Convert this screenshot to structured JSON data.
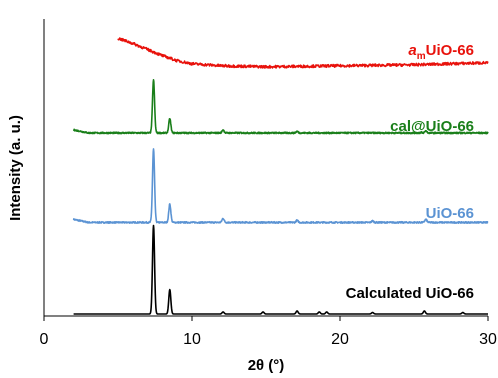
{
  "chart_data": {
    "type": "line",
    "title": "",
    "xlabel": "2θ (°)",
    "ylabel": "Intensity (a. u.)",
    "xlim": [
      0,
      30
    ],
    "xticks": [
      "0",
      "10",
      "20",
      "30"
    ],
    "y_ticks_shown": false,
    "grid": false,
    "legend": "inline labels at right",
    "series": [
      {
        "name": "Calculated UiO-66",
        "color": "#000000",
        "x_range": [
          2,
          30
        ],
        "baseline": 0,
        "peaks": [
          {
            "x": 7.4,
            "y": 87
          },
          {
            "x": 8.5,
            "y": 24
          },
          {
            "x": 12.1,
            "y": 2
          },
          {
            "x": 14.8,
            "y": 2
          },
          {
            "x": 17.1,
            "y": 3
          },
          {
            "x": 18.6,
            "y": 2
          },
          {
            "x": 19.1,
            "y": 2
          },
          {
            "x": 22.2,
            "y": 1.5
          },
          {
            "x": 25.7,
            "y": 3
          },
          {
            "x": 28.3,
            "y": 1.5
          }
        ]
      },
      {
        "name": "UiO-66",
        "color": "#5b93d3",
        "x_range": [
          2,
          30
        ],
        "baseline": 90,
        "peaks": [
          {
            "x": 7.4,
            "y": 72
          },
          {
            "x": 8.5,
            "y": 18
          },
          {
            "x": 12.1,
            "y": 4
          },
          {
            "x": 17.1,
            "y": 2
          },
          {
            "x": 22.2,
            "y": 1.5
          },
          {
            "x": 25.8,
            "y": 3
          }
        ]
      },
      {
        "name": "cal@UiO-66",
        "color": "#1a7f1a",
        "x_range": [
          2,
          30
        ],
        "baseline": 178,
        "peaks": [
          {
            "x": 7.4,
            "y": 52
          },
          {
            "x": 8.5,
            "y": 14
          },
          {
            "x": 12.1,
            "y": 3
          },
          {
            "x": 17.1,
            "y": 1.5
          },
          {
            "x": 25.8,
            "y": 2
          }
        ]
      },
      {
        "name_prefix": "a",
        "name_subscript": "m",
        "name_suffix": "UiO-66",
        "color": "#e8120c",
        "x_range": [
          5,
          30
        ],
        "points": [
          [
            5,
            271
          ],
          [
            6,
            266
          ],
          [
            7,
            260
          ],
          [
            8,
            254
          ],
          [
            9,
            249
          ],
          [
            10,
            246
          ],
          [
            12,
            244
          ],
          [
            15,
            243
          ],
          [
            20,
            244
          ],
          [
            25,
            245
          ],
          [
            30,
            247
          ]
        ]
      }
    ]
  }
}
